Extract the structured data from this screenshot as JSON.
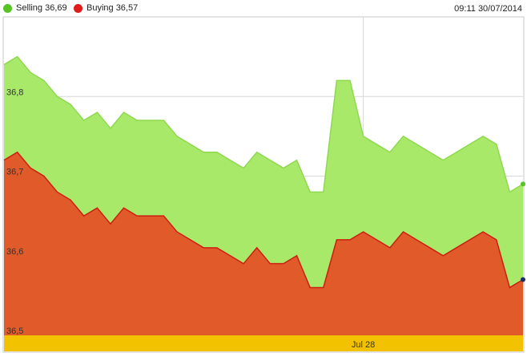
{
  "header": {
    "timestamp": "09:11 30/07/2014"
  },
  "chart_data": {
    "type": "area",
    "title": "",
    "xlabel": "",
    "ylabel": "",
    "ylim": [
      36.5,
      36.9
    ],
    "yticks": [
      {
        "value": 36.5,
        "label": "36,5"
      },
      {
        "value": 36.6,
        "label": "36,6"
      },
      {
        "value": 36.7,
        "label": "36,7"
      },
      {
        "value": 36.8,
        "label": "36,8"
      }
    ],
    "x_label_ticks": [
      {
        "index": 27,
        "label": "Jul 28"
      }
    ],
    "grid": true,
    "legend": "top-left",
    "series": [
      {
        "name": "Selling",
        "legend_label": "Selling 36,69",
        "color": "#a8e96a",
        "marker_color": "#57c425",
        "values": [
          36.84,
          36.85,
          36.83,
          36.82,
          36.8,
          36.79,
          36.77,
          36.78,
          36.76,
          36.78,
          36.77,
          36.77,
          36.77,
          36.75,
          36.74,
          36.73,
          36.73,
          36.72,
          36.71,
          36.73,
          36.72,
          36.71,
          36.72,
          36.68,
          36.68,
          36.82,
          36.82,
          36.75,
          36.74,
          36.73,
          36.75,
          36.74,
          36.73,
          36.72,
          36.73,
          36.74,
          36.75,
          36.74,
          36.68,
          36.69
        ]
      },
      {
        "name": "Buying",
        "legend_label": "Buying 36,57",
        "color": "#e05a2a",
        "marker_color": "#e01b1b",
        "values": [
          36.72,
          36.73,
          36.71,
          36.7,
          36.68,
          36.67,
          36.65,
          36.66,
          36.64,
          36.66,
          36.65,
          36.65,
          36.65,
          36.63,
          36.62,
          36.61,
          36.61,
          36.6,
          36.59,
          36.61,
          36.59,
          36.59,
          36.6,
          36.56,
          36.56,
          36.62,
          36.62,
          36.63,
          36.62,
          36.61,
          36.63,
          36.62,
          36.61,
          36.6,
          36.61,
          36.62,
          36.63,
          36.62,
          36.56,
          36.57
        ]
      }
    ]
  }
}
